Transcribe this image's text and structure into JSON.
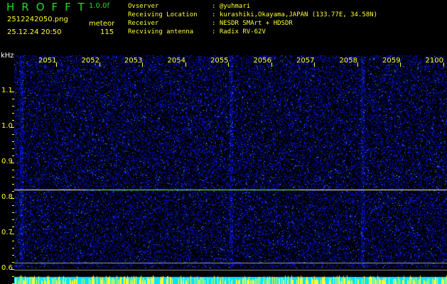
{
  "header": {
    "logo": "HROFFT",
    "version": "1.0.0f",
    "filename": "2512242050.png",
    "datetime": "25.12.24 20:50",
    "meteor_label": "meteor",
    "meteor_count": "115"
  },
  "info": [
    {
      "label": "Ovserver",
      "value": "@yuhmari"
    },
    {
      "label": "Receiving Location",
      "value": "kurashiki,Okayama,JAPAN (133.77E, 34.58N)"
    },
    {
      "label": "Receiver",
      "value": "NESDR SMArt + HDSDR"
    },
    {
      "label": "Recviving antenna",
      "value": "Radix RV-62V"
    }
  ],
  "chart_data": {
    "type": "heatmap",
    "ylabel": "kHz",
    "x_ticks": [
      "2051",
      "2052",
      "2053",
      "2054",
      "2055",
      "2056",
      "2057",
      "2058",
      "2059",
      "2100"
    ],
    "y_ticks": [
      "1.1",
      "1.0",
      "0.9",
      "0.8",
      "0.7",
      "0.6"
    ],
    "ylim": [
      0.58,
      1.2
    ],
    "carrier_khz": 0.824,
    "reference_lines_khz": [
      0.618,
      0.598
    ],
    "colors": {
      "background": "#000000",
      "signal": "#2030ff",
      "text": "#ffff33",
      "carrier": "#ffffaa",
      "level_bar": "#00e5ff"
    }
  }
}
